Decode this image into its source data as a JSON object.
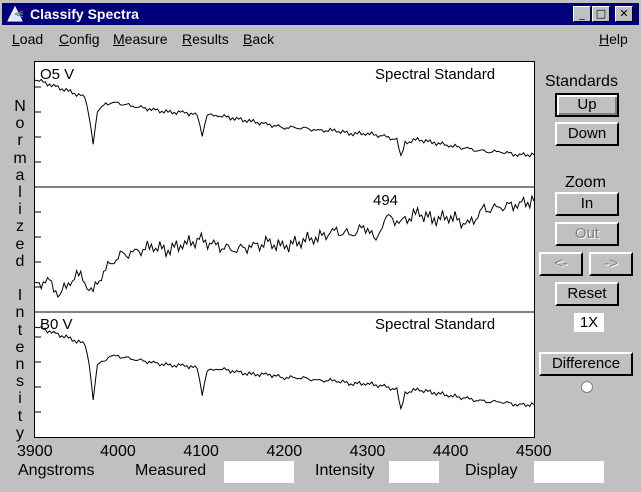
{
  "window": {
    "title": "Classify Spectra",
    "minimize": "_",
    "maximize": "□",
    "close": "✕"
  },
  "menu": {
    "load": {
      "first": "L",
      "rest": "oad"
    },
    "config": {
      "first": "C",
      "rest": "onfig"
    },
    "measure": {
      "first": "M",
      "rest": "easure"
    },
    "results": {
      "first": "R",
      "rest": "esults"
    },
    "back": {
      "first": "B",
      "rest": "ack"
    },
    "help": {
      "first": "H",
      "rest": "elp"
    }
  },
  "y_axis_label": "Normalized Intensity",
  "panels": {
    "top": {
      "star": "O5 V",
      "kind": "Spectral Standard"
    },
    "middle": {
      "id": "494"
    },
    "bottom": {
      "star": "B0 V",
      "kind": "Spectral Standard"
    }
  },
  "x_axis": {
    "ticks": [
      "3900",
      "4000",
      "4100",
      "4200",
      "4300",
      "4400",
      "4500"
    ],
    "unit": "Angstroms"
  },
  "status": {
    "measured_label": "Measured",
    "measured_value": "",
    "intensity_label": "Intensity",
    "intensity_value": "",
    "display_label": "Display",
    "display_value": ""
  },
  "sidebar": {
    "standards_title": "Standards",
    "up": "Up",
    "down": "Down",
    "zoom_title": "Zoom",
    "zoom_in": "In",
    "zoom_out": "Out",
    "pan_left": "<-",
    "pan_right": "->",
    "reset": "Reset",
    "zoom_level": "1X",
    "difference": "Difference"
  },
  "chart_data": [
    {
      "type": "line",
      "title": "O5 V",
      "subtitle": "Spectral Standard",
      "xlim": [
        3900,
        4500
      ],
      "x": [
        3900,
        3920,
        3940,
        3960,
        3965,
        3970,
        3975,
        3985,
        4000,
        4020,
        4040,
        4060,
        4080,
        4095,
        4101,
        4107,
        4120,
        4140,
        4160,
        4180,
        4200,
        4220,
        4240,
        4260,
        4280,
        4300,
        4320,
        4335,
        4340,
        4345,
        4360,
        4380,
        4400,
        4420,
        4440,
        4460,
        4480,
        4500
      ],
      "values": [
        0.985,
        0.975,
        0.965,
        0.955,
        0.925,
        0.88,
        0.93,
        0.945,
        0.945,
        0.94,
        0.935,
        0.93,
        0.93,
        0.925,
        0.89,
        0.925,
        0.925,
        0.92,
        0.915,
        0.91,
        0.905,
        0.905,
        0.9,
        0.9,
        0.895,
        0.895,
        0.89,
        0.885,
        0.855,
        0.88,
        0.885,
        0.88,
        0.875,
        0.87,
        0.865,
        0.865,
        0.86,
        0.86
      ]
    },
    {
      "type": "line",
      "title": "494",
      "xlim": [
        3900,
        4500
      ],
      "x": [
        3900,
        3915,
        3930,
        3940,
        3955,
        3965,
        3970,
        3980,
        4000,
        4020,
        4040,
        4060,
        4080,
        4100,
        4120,
        4140,
        4160,
        4180,
        4200,
        4220,
        4240,
        4260,
        4280,
        4300,
        4310,
        4320,
        4340,
        4360,
        4380,
        4400,
        4420,
        4440,
        4460,
        4480,
        4500
      ],
      "values": [
        0.72,
        0.74,
        0.69,
        0.73,
        0.76,
        0.71,
        0.7,
        0.76,
        0.82,
        0.83,
        0.85,
        0.84,
        0.86,
        0.87,
        0.85,
        0.84,
        0.85,
        0.86,
        0.85,
        0.87,
        0.88,
        0.9,
        0.89,
        0.92,
        0.86,
        0.95,
        0.93,
        0.96,
        0.94,
        0.95,
        0.92,
        0.97,
        0.98,
        0.99,
        1.0
      ]
    },
    {
      "type": "line",
      "title": "B0 V",
      "subtitle": "Spectral Standard",
      "xlim": [
        3900,
        4500
      ],
      "x": [
        3900,
        3920,
        3940,
        3960,
        3965,
        3970,
        3975,
        3990,
        4000,
        4020,
        4040,
        4060,
        4080,
        4095,
        4101,
        4107,
        4120,
        4140,
        4160,
        4180,
        4200,
        4220,
        4240,
        4260,
        4280,
        4300,
        4320,
        4335,
        4340,
        4345,
        4360,
        4380,
        4400,
        4420,
        4440,
        4460,
        4480,
        4500
      ],
      "values": [
        0.99,
        0.98,
        0.97,
        0.96,
        0.93,
        0.87,
        0.925,
        0.94,
        0.94,
        0.935,
        0.93,
        0.925,
        0.925,
        0.92,
        0.875,
        0.915,
        0.92,
        0.915,
        0.91,
        0.91,
        0.905,
        0.905,
        0.9,
        0.9,
        0.895,
        0.895,
        0.89,
        0.885,
        0.85,
        0.88,
        0.885,
        0.88,
        0.875,
        0.87,
        0.865,
        0.865,
        0.86,
        0.86
      ]
    }
  ]
}
